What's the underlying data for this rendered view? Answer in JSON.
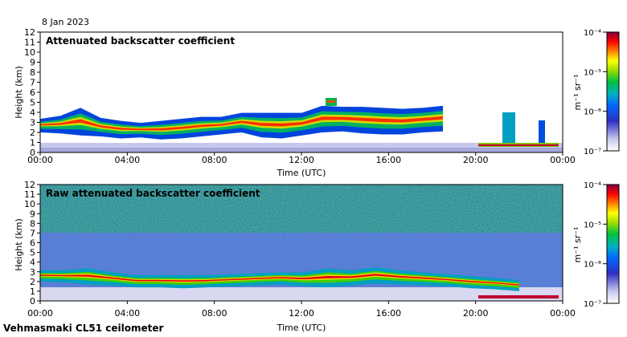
{
  "date": "8 Jan 2023",
  "footer": "Vehmasmaki CL51 ceilometer",
  "colors": {
    "scale": [
      "#e6e6f5",
      "#b0b0e0",
      "#4040c8",
      "#0033ff",
      "#00a0d0",
      "#00c050",
      "#80e000",
      "#ffff00",
      "#ff8000",
      "#ff0000",
      "#c00030",
      "#800040"
    ]
  },
  "chart_data": [
    {
      "type": "heatmap",
      "title": "Attenuated backscatter coefficient",
      "xlabel": "Time (UTC)",
      "ylabel": "Height (km)",
      "xticks": [
        "00:00",
        "04:00",
        "08:00",
        "12:00",
        "16:00",
        "20:00",
        "00:00"
      ],
      "xlim_hours": [
        0,
        24
      ],
      "yticks": [
        "0",
        "1",
        "2",
        "3",
        "4",
        "5",
        "6",
        "7",
        "8",
        "9",
        "10",
        "11",
        "12"
      ],
      "ylim": [
        0,
        12
      ],
      "colorbar": {
        "label": "m⁻¹ sr⁻¹",
        "ticks": [
          "10⁻⁴",
          "10⁻⁵",
          "10⁻⁶",
          "10⁻⁷"
        ],
        "range_log10": [
          -7,
          -4
        ]
      },
      "cloud_layer": {
        "base_km": [
          2.3,
          2.2,
          2.0,
          1.9,
          1.7,
          1.8,
          1.6,
          1.7,
          1.9,
          2.1,
          2.3,
          1.8,
          1.7,
          2.0,
          2.3,
          2.4,
          2.2,
          2.1,
          2.1,
          2.3,
          2.4
        ],
        "top_km": [
          3.2,
          3.5,
          4.3,
          3.3,
          3.0,
          2.8,
          3.0,
          3.2,
          3.4,
          3.4,
          3.8,
          3.8,
          3.8,
          3.8,
          4.5,
          4.4,
          4.4,
          4.3,
          4.2,
          4.3,
          4.5
        ],
        "from_hour": 0,
        "to_hour": 18.5
      }
    },
    {
      "type": "heatmap",
      "title": "Raw attenuated backscatter coefficient",
      "xlabel": "Time (UTC)",
      "ylabel": "Height (km)",
      "xticks": [
        "00:00",
        "04:00",
        "08:00",
        "12:00",
        "16:00",
        "20:00",
        "00:00"
      ],
      "xlim_hours": [
        0,
        24
      ],
      "yticks": [
        "0",
        "1",
        "2",
        "3",
        "4",
        "5",
        "6",
        "7",
        "8",
        "9",
        "10",
        "11",
        "12"
      ],
      "ylim": [
        0,
        12
      ],
      "colorbar": {
        "label": "m⁻¹ sr⁻¹",
        "ticks": [
          "10⁻⁴",
          "10⁻⁵",
          "10⁻⁶",
          "10⁻⁷"
        ],
        "range_log10": [
          -7,
          -4
        ]
      },
      "cloud_layer": {
        "base_km": [
          2.3,
          2.2,
          2.0,
          1.9,
          1.7,
          1.7,
          1.6,
          1.7,
          1.8,
          1.9,
          2.0,
          1.8,
          1.7,
          1.9,
          2.1,
          2.0,
          1.9,
          1.8,
          1.6,
          1.5,
          1.3
        ],
        "top_km": [
          3.0,
          3.0,
          3.2,
          2.8,
          2.5,
          2.5,
          2.5,
          2.5,
          2.6,
          2.7,
          2.8,
          2.8,
          3.2,
          3.0,
          3.3,
          3.0,
          2.8,
          2.6,
          2.4,
          2.2,
          2.0
        ],
        "from_hour": 0,
        "to_hour": 22
      }
    }
  ]
}
